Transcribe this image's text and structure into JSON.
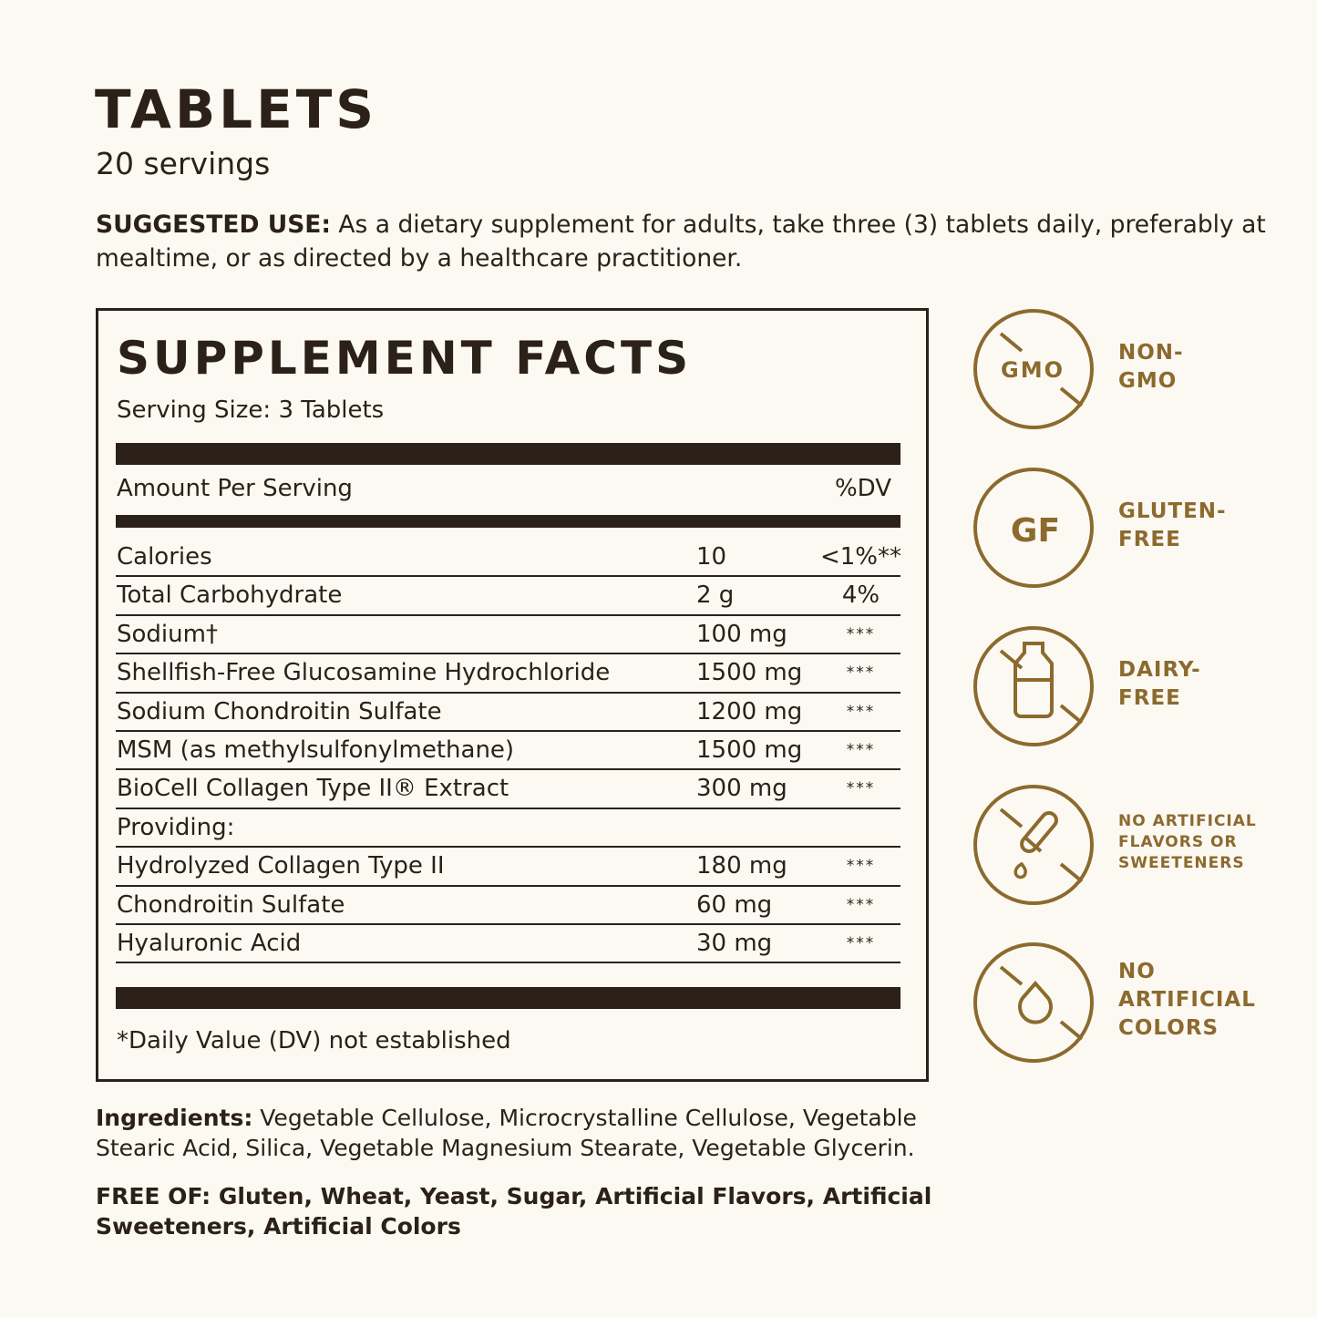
{
  "header": {
    "title": "TABLETS",
    "servings": "20 servings",
    "suggested_use_label": "SUGGESTED USE:",
    "suggested_use_text": " As a dietary supplement for adults, take three (3) tablets daily, preferably at mealtime, or as directed by a healthcare practitioner."
  },
  "facts": {
    "title": "SUPPLEMENT FACTS",
    "serving_size": "Serving Size: 3 Tablets",
    "amount_header": "Amount Per Serving",
    "dv_header": "%DV",
    "rows": [
      {
        "name": "Calories",
        "amount": "10",
        "dv": "<1%**"
      },
      {
        "name": "Total Carbohydrate",
        "amount": "2 g",
        "dv": "4%"
      },
      {
        "name": "Sodium†",
        "amount": "100 mg",
        "dv": "***"
      },
      {
        "name": "Shellfish-Free Glucosamine Hydrochloride",
        "amount": "1500 mg",
        "dv": "***"
      },
      {
        "name": "Sodium Chondroitin Sulfate",
        "amount": "1200 mg",
        "dv": "***"
      },
      {
        "name": "MSM (as methylsulfonylmethane)",
        "amount": "1500 mg",
        "dv": "***"
      },
      {
        "name": "BioCell Collagen Type II® Extract",
        "amount": "300 mg",
        "dv": "***"
      },
      {
        "name": "Providing:",
        "amount": "",
        "dv": ""
      },
      {
        "name": "Hydrolyzed Collagen Type II",
        "amount": "180 mg",
        "dv": "***"
      },
      {
        "name": "Chondroitin Sulfate",
        "amount": "60 mg",
        "dv": "***"
      },
      {
        "name": "Hyaluronic Acid",
        "amount": "30 mg",
        "dv": "***"
      }
    ],
    "footnote": "*Daily Value (DV) not established"
  },
  "ingredients": {
    "label": "Ingredients:",
    "text": " Vegetable Cellulose, Microcrystalline Cellulose, Vegetable Stearic Acid, Silica, Vegetable Magnesium Stearate, Vegetable Glycerin."
  },
  "free_of": "FREE OF: Gluten, Wheat, Yeast, Sugar, Artificial Flavors, Artificial Sweeteners, Artificial Colors",
  "badges": [
    {
      "icon": "gmo-crossed-icon",
      "icon_text": "GMO",
      "label": "NON-\nGMO"
    },
    {
      "icon": "gf-icon",
      "icon_text": "GF",
      "label": "GLUTEN-\nFREE"
    },
    {
      "icon": "milk-bottle-crossed-icon",
      "label": "DAIRY-\nFREE"
    },
    {
      "icon": "dropper-crossed-icon",
      "label": "NO ARTIFICIAL\nFLAVORS OR\nSWEETENERS"
    },
    {
      "icon": "drop-crossed-icon",
      "label": "NO\nARTIFICIAL\nCOLORS"
    }
  ],
  "colors": {
    "text": "#2b2118",
    "accent": "#8c6a2e",
    "background": "#fcf9f3"
  }
}
